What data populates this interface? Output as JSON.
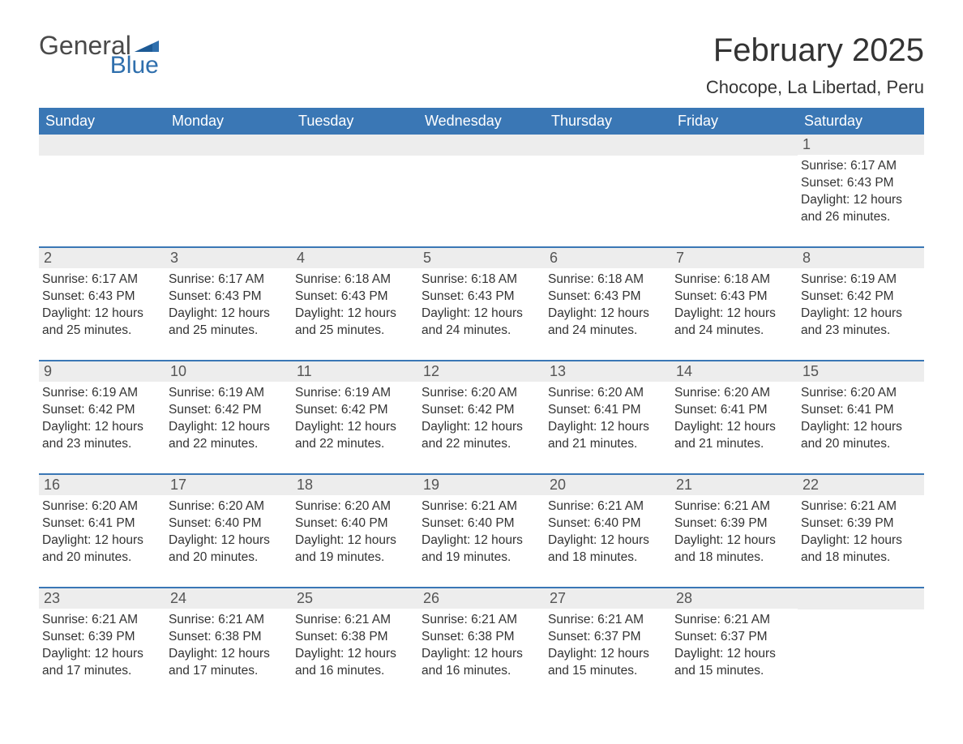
{
  "logo": {
    "general": "General",
    "blue": "Blue"
  },
  "title": "February 2025",
  "location": "Chocope, La Libertad, Peru",
  "colors": {
    "header_bg": "#3a77b5",
    "header_text": "#ffffff",
    "daynum_bg": "#ededed",
    "row_divider": "#3a77b5",
    "body_text": "#333333",
    "logo_gray": "#4a4a4a",
    "logo_blue": "#2f6fad"
  },
  "weekdays": [
    "Sunday",
    "Monday",
    "Tuesday",
    "Wednesday",
    "Thursday",
    "Friday",
    "Saturday"
  ],
  "weeks": [
    [
      null,
      null,
      null,
      null,
      null,
      null,
      {
        "n": "1",
        "sunrise": "Sunrise: 6:17 AM",
        "sunset": "Sunset: 6:43 PM",
        "daylight": "Daylight: 12 hours and 26 minutes."
      }
    ],
    [
      {
        "n": "2",
        "sunrise": "Sunrise: 6:17 AM",
        "sunset": "Sunset: 6:43 PM",
        "daylight": "Daylight: 12 hours and 25 minutes."
      },
      {
        "n": "3",
        "sunrise": "Sunrise: 6:17 AM",
        "sunset": "Sunset: 6:43 PM",
        "daylight": "Daylight: 12 hours and 25 minutes."
      },
      {
        "n": "4",
        "sunrise": "Sunrise: 6:18 AM",
        "sunset": "Sunset: 6:43 PM",
        "daylight": "Daylight: 12 hours and 25 minutes."
      },
      {
        "n": "5",
        "sunrise": "Sunrise: 6:18 AM",
        "sunset": "Sunset: 6:43 PM",
        "daylight": "Daylight: 12 hours and 24 minutes."
      },
      {
        "n": "6",
        "sunrise": "Sunrise: 6:18 AM",
        "sunset": "Sunset: 6:43 PM",
        "daylight": "Daylight: 12 hours and 24 minutes."
      },
      {
        "n": "7",
        "sunrise": "Sunrise: 6:18 AM",
        "sunset": "Sunset: 6:43 PM",
        "daylight": "Daylight: 12 hours and 24 minutes."
      },
      {
        "n": "8",
        "sunrise": "Sunrise: 6:19 AM",
        "sunset": "Sunset: 6:42 PM",
        "daylight": "Daylight: 12 hours and 23 minutes."
      }
    ],
    [
      {
        "n": "9",
        "sunrise": "Sunrise: 6:19 AM",
        "sunset": "Sunset: 6:42 PM",
        "daylight": "Daylight: 12 hours and 23 minutes."
      },
      {
        "n": "10",
        "sunrise": "Sunrise: 6:19 AM",
        "sunset": "Sunset: 6:42 PM",
        "daylight": "Daylight: 12 hours and 22 minutes."
      },
      {
        "n": "11",
        "sunrise": "Sunrise: 6:19 AM",
        "sunset": "Sunset: 6:42 PM",
        "daylight": "Daylight: 12 hours and 22 minutes."
      },
      {
        "n": "12",
        "sunrise": "Sunrise: 6:20 AM",
        "sunset": "Sunset: 6:42 PM",
        "daylight": "Daylight: 12 hours and 22 minutes."
      },
      {
        "n": "13",
        "sunrise": "Sunrise: 6:20 AM",
        "sunset": "Sunset: 6:41 PM",
        "daylight": "Daylight: 12 hours and 21 minutes."
      },
      {
        "n": "14",
        "sunrise": "Sunrise: 6:20 AM",
        "sunset": "Sunset: 6:41 PM",
        "daylight": "Daylight: 12 hours and 21 minutes."
      },
      {
        "n": "15",
        "sunrise": "Sunrise: 6:20 AM",
        "sunset": "Sunset: 6:41 PM",
        "daylight": "Daylight: 12 hours and 20 minutes."
      }
    ],
    [
      {
        "n": "16",
        "sunrise": "Sunrise: 6:20 AM",
        "sunset": "Sunset: 6:41 PM",
        "daylight": "Daylight: 12 hours and 20 minutes."
      },
      {
        "n": "17",
        "sunrise": "Sunrise: 6:20 AM",
        "sunset": "Sunset: 6:40 PM",
        "daylight": "Daylight: 12 hours and 20 minutes."
      },
      {
        "n": "18",
        "sunrise": "Sunrise: 6:20 AM",
        "sunset": "Sunset: 6:40 PM",
        "daylight": "Daylight: 12 hours and 19 minutes."
      },
      {
        "n": "19",
        "sunrise": "Sunrise: 6:21 AM",
        "sunset": "Sunset: 6:40 PM",
        "daylight": "Daylight: 12 hours and 19 minutes."
      },
      {
        "n": "20",
        "sunrise": "Sunrise: 6:21 AM",
        "sunset": "Sunset: 6:40 PM",
        "daylight": "Daylight: 12 hours and 18 minutes."
      },
      {
        "n": "21",
        "sunrise": "Sunrise: 6:21 AM",
        "sunset": "Sunset: 6:39 PM",
        "daylight": "Daylight: 12 hours and 18 minutes."
      },
      {
        "n": "22",
        "sunrise": "Sunrise: 6:21 AM",
        "sunset": "Sunset: 6:39 PM",
        "daylight": "Daylight: 12 hours and 18 minutes."
      }
    ],
    [
      {
        "n": "23",
        "sunrise": "Sunrise: 6:21 AM",
        "sunset": "Sunset: 6:39 PM",
        "daylight": "Daylight: 12 hours and 17 minutes."
      },
      {
        "n": "24",
        "sunrise": "Sunrise: 6:21 AM",
        "sunset": "Sunset: 6:38 PM",
        "daylight": "Daylight: 12 hours and 17 minutes."
      },
      {
        "n": "25",
        "sunrise": "Sunrise: 6:21 AM",
        "sunset": "Sunset: 6:38 PM",
        "daylight": "Daylight: 12 hours and 16 minutes."
      },
      {
        "n": "26",
        "sunrise": "Sunrise: 6:21 AM",
        "sunset": "Sunset: 6:38 PM",
        "daylight": "Daylight: 12 hours and 16 minutes."
      },
      {
        "n": "27",
        "sunrise": "Sunrise: 6:21 AM",
        "sunset": "Sunset: 6:37 PM",
        "daylight": "Daylight: 12 hours and 15 minutes."
      },
      {
        "n": "28",
        "sunrise": "Sunrise: 6:21 AM",
        "sunset": "Sunset: 6:37 PM",
        "daylight": "Daylight: 12 hours and 15 minutes."
      },
      null
    ]
  ]
}
